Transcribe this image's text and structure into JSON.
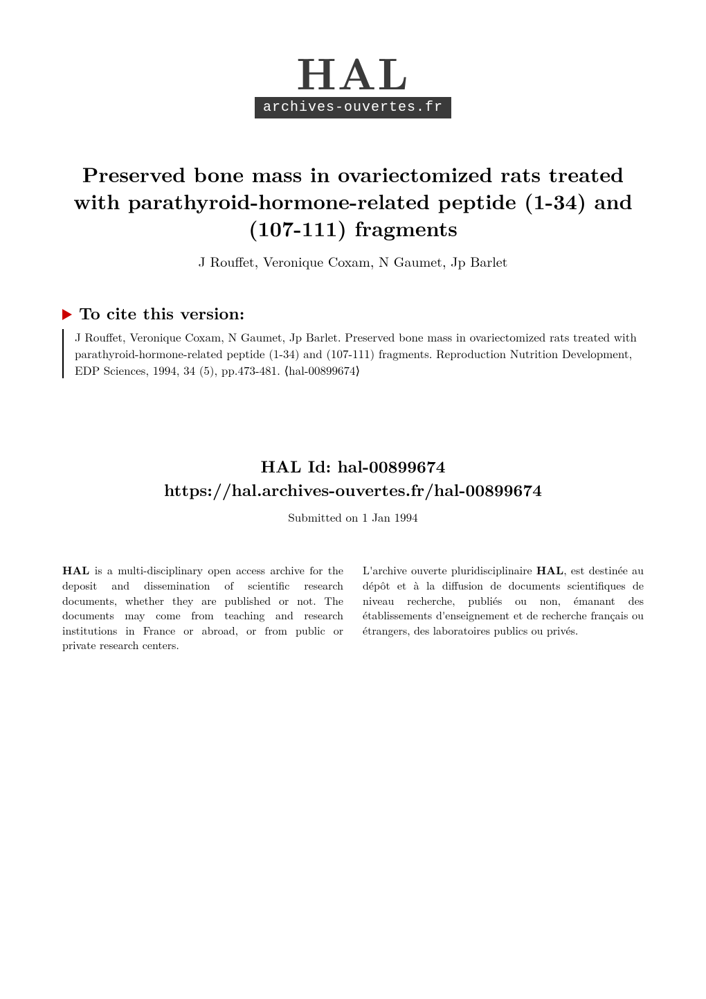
{
  "logo": {
    "text": "HAL",
    "subtext": "archives-ouvertes.fr",
    "text_color": "#3a3a3a",
    "sub_bg": "#3a3a3a",
    "sub_fg": "#ffffff"
  },
  "title": "Preserved bone mass in ovariectomized rats treated with parathyroid-hormone-related peptide (1-34) and (107-111) fragments",
  "authors": "J Rouffet, Veronique Coxam, N Gaumet, Jp Barlet",
  "cite_heading": "To cite this version:",
  "cite_marker_color": "#cc0000",
  "citation": "J Rouffet, Veronique Coxam, N Gaumet, Jp Barlet. Preserved bone mass in ovariectomized rats treated with parathyroid-hormone-related peptide (1-34) and (107-111) fragments. Reproduction Nutrition Development, EDP Sciences, 1994, 34 (5), pp.473-481. ⟨hal-00899674⟩",
  "hal_id_label": "HAL Id: hal-00899674",
  "hal_url": "https://hal.archives-ouvertes.fr/hal-00899674",
  "submitted": "Submitted on 1 Jan 1994",
  "col_left": {
    "bold": "HAL",
    "text": " is a multi-disciplinary open access archive for the deposit and dissemination of scientific research documents, whether they are published or not. The documents may come from teaching and research institutions in France or abroad, or from public or private research centers."
  },
  "col_right": {
    "prefix": "L'archive ouverte pluridisciplinaire ",
    "bold": "HAL",
    "text": ", est destinée au dépôt et à la diffusion de documents scientifiques de niveau recherche, publiés ou non, émanant des établissements d'enseignement et de recherche français ou étrangers, des laboratoires publics ou privés."
  },
  "typography": {
    "title_fontsize": 30,
    "authors_fontsize": 20,
    "heading_fontsize": 24,
    "body_fontsize": 17,
    "col_fontsize": 16
  },
  "colors": {
    "background": "#ffffff",
    "text": "#000000"
  }
}
